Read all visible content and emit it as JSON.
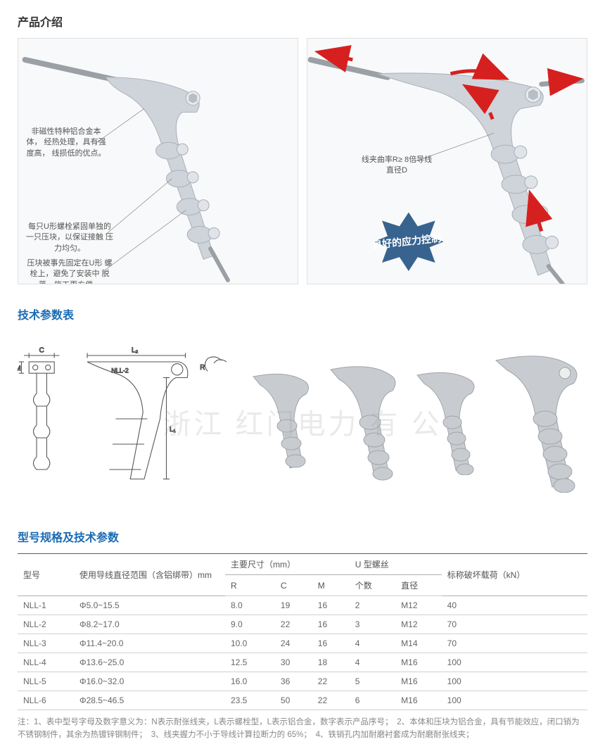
{
  "sections": {
    "intro_title": "产品介绍",
    "tech_title": "技术参数表",
    "spec_title": "型号规格及技术参数"
  },
  "diagram1": {
    "callout1": "非磁性特种铝合金本体，\n经热处理，具有强度高，\n线损低的优点。",
    "callout2": "每只U形螺栓紧固单独的\n一只压块，以保证接触\n压力均匀。",
    "callout3": "压块被事先固定在U形\n螺栓上，避免了安装中\n脱落，施工更方便。"
  },
  "diagram2": {
    "callout1": "线夹曲率R≥\n8倍导线直径D",
    "badge_text": "良好的应力控制"
  },
  "tech_drawing": {
    "label_C": "C",
    "label_M": "M",
    "label_L2": "L₂",
    "label_L1": "L₁",
    "label_R": "R",
    "label_model": "NLL-2"
  },
  "watermark": "浙江 红门电力 有 公",
  "table": {
    "headers": {
      "model": "型号",
      "range": "使用导线直径范围（含铝绑带）mm",
      "main_dim": "主要尺寸（mm）",
      "R": "R",
      "C": "C",
      "M": "M",
      "ubolt": "U 型螺丝",
      "count": "个数",
      "diameter": "直径",
      "load": "标称破坏载荷（kN）"
    },
    "rows": [
      {
        "model": "NLL-1",
        "range": "Φ5.0~15.5",
        "R": "8.0",
        "C": "19",
        "M": "16",
        "count": "2",
        "dia": "M12",
        "load": "40"
      },
      {
        "model": "NLL-2",
        "range": "Φ8.2~17.0",
        "R": "9.0",
        "C": "22",
        "M": "16",
        "count": "3",
        "dia": "M12",
        "load": "70"
      },
      {
        "model": "NLL-3",
        "range": "Φ11.4~20.0",
        "R": "10.0",
        "C": "24",
        "M": "16",
        "count": "4",
        "dia": "M14",
        "load": "70"
      },
      {
        "model": "NLL-4",
        "range": "Φ13.6~25.0",
        "R": "12.5",
        "C": "30",
        "M": "18",
        "count": "4",
        "dia": "M16",
        "load": "100"
      },
      {
        "model": "NLL-5",
        "range": "Φ16.0~32.0",
        "R": "16.0",
        "C": "36",
        "M": "22",
        "count": "5",
        "dia": "M16",
        "load": "100"
      },
      {
        "model": "NLL-6",
        "range": "Φ28.5~46.5",
        "R": "23.5",
        "C": "50",
        "M": "22",
        "count": "6",
        "dia": "M16",
        "load": "100"
      }
    ]
  },
  "footnote": "注：1、表中型号字母及数字意义为：N表示耐张线夹，L表示螺栓型，L表示铝合金，数字表示产品序号；　2、本体和压块为铝合金，具有节能效应，闭口销为不锈钢制件，其余为热镀锌钢制件；　3、线夹握力不小于导线计算拉断力的 65%；　4、铁销孔内加耐磨衬套成为耐磨耐张线夹；",
  "colors": {
    "accent": "#1a6bb3",
    "arrow": "#d62020",
    "badge": "#38638f",
    "clamp_body": "#cfd4da",
    "clamp_shade": "#a8b0ba",
    "cable": "#9aa0a6",
    "photo_body": "#c8ccd0",
    "photo_shade": "#9fa5aa"
  }
}
